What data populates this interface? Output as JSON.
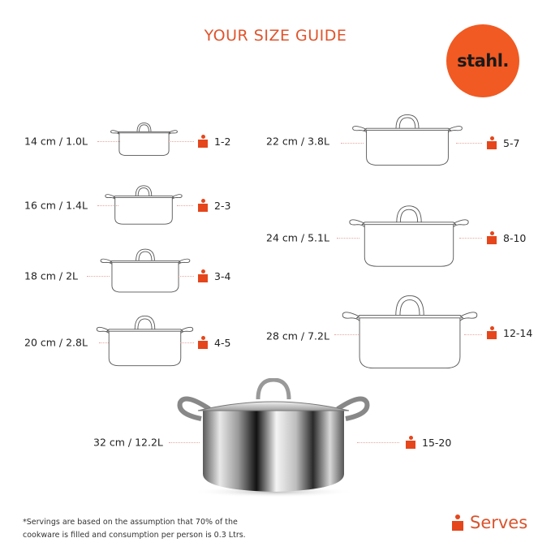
{
  "title": "YOUR SIZE GUIDE",
  "brand": {
    "logo_text": "stahl.",
    "color": "#f15a22"
  },
  "accent_color": "#e5461c",
  "sizes": [
    {
      "label": "14 cm / 1.0L",
      "serves": "1-2"
    },
    {
      "label": "16 cm / 1.4L",
      "serves": "2-3"
    },
    {
      "label": "18 cm / 2L",
      "serves": "3-4"
    },
    {
      "label": "20 cm / 2.8L",
      "serves": "4-5"
    },
    {
      "label": "22 cm / 3.8L",
      "serves": "5-7"
    },
    {
      "label": "24 cm / 5.1L",
      "serves": "8-10"
    },
    {
      "label": "28 cm / 7.2L",
      "serves": "12-14"
    },
    {
      "label": "32 cm / 12.2L",
      "serves": "15-20"
    }
  ],
  "footnote": {
    "line1": "*Servings are based on the assumption that 70% of the",
    "line2": "cookware is filled and consumption per person is 0.3 Ltrs."
  },
  "legend": {
    "icon": "person-icon",
    "label": "Serves"
  }
}
